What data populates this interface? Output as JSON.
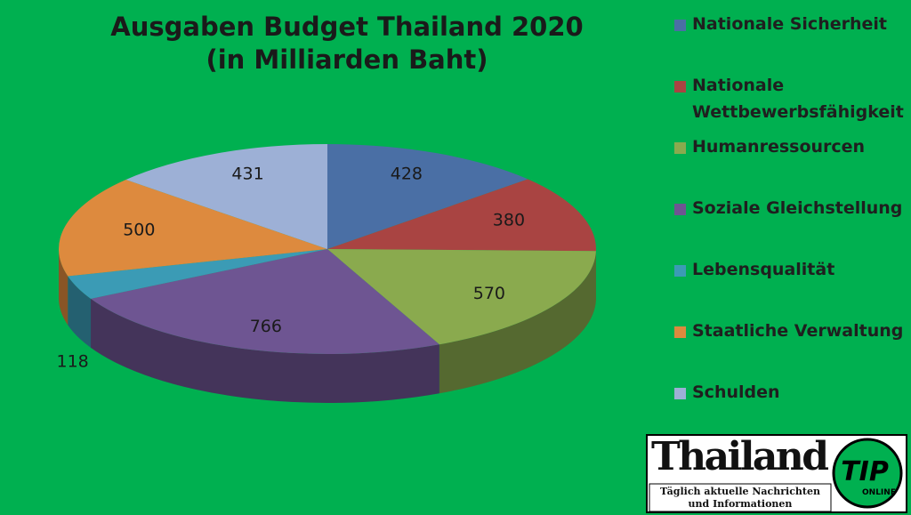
{
  "chart_data": {
    "type": "pie3d",
    "title": "Ausgaben Budget Thailand 2020",
    "subtitle": "(in Milliarden Baht)",
    "categories": [
      "Nationale Sicherheit",
      "Nationale Wettbewerbsfähigkeit",
      "Humanressourcen",
      "Soziale Gleichstellung",
      "Lebensqualität",
      "Staatliche Verwaltung",
      "Schulden"
    ],
    "values": [
      428,
      380,
      570,
      766,
      118,
      500,
      431
    ],
    "colors": [
      "#4a6fa5",
      "#a94442",
      "#8aaa4e",
      "#6e5592",
      "#3b9bb5",
      "#dd8a3e",
      "#9db0d6"
    ],
    "legend": "right"
  },
  "logo": {
    "name": "Thailand",
    "line1": "Täglich aktuelle Nachrichten",
    "line2": "und Informationen",
    "badge": "TIP",
    "badge_sub": "ONLINE"
  }
}
